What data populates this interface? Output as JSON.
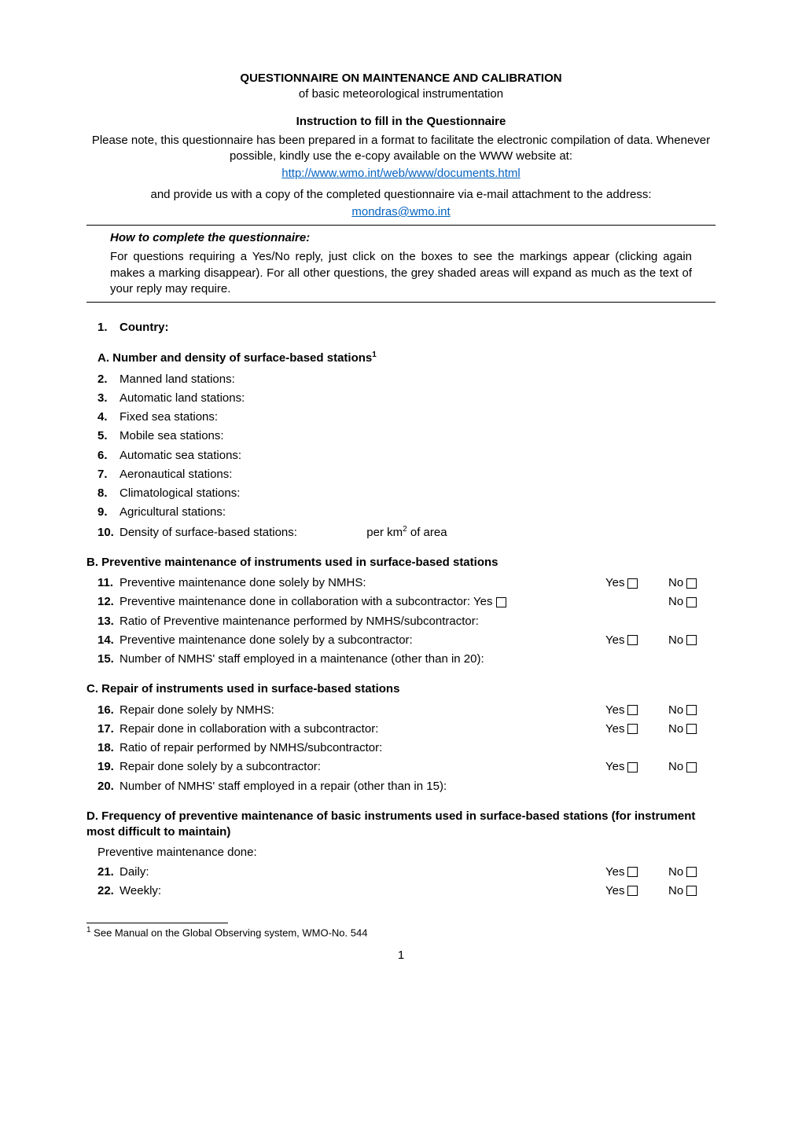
{
  "header": {
    "title": "QUESTIONNAIRE ON MAINTENANCE AND CALIBRATION",
    "subtitle": "of basic meteorological instrumentation",
    "instruction_heading": "Instruction to fill in the Questionnaire",
    "instruction_p1": "Please note, this questionnaire has been prepared in a format to facilitate the electronic compilation of data. Whenever possible, kindly use the e-copy available on the WWW website at:",
    "link1": "http://www.wmo.int/web/www/documents.html",
    "instruction_p2": "and provide us with a copy of the completed questionnaire via e-mail attachment to the address:",
    "link2": "mondras@wmo.int",
    "howto_heading": "How to complete the questionnaire:",
    "howto_body": "For questions requiring a Yes/No reply, just click on the boxes to see the markings appear (clicking again makes a marking disappear).  For all other questions, the grey shaded areas will expand as much as the text of your reply may require."
  },
  "q1": {
    "num": "1.",
    "label": "Country:"
  },
  "sectionA": {
    "heading": "A. Number and density of surface-based stations",
    "sup": "1",
    "items": [
      {
        "num": "2.",
        "label": "Manned land stations:"
      },
      {
        "num": "3.",
        "label": "Automatic land stations:"
      },
      {
        "num": "4.",
        "label": "Fixed sea stations:"
      },
      {
        "num": "5.",
        "label": "Mobile sea stations:"
      },
      {
        "num": "6.",
        "label": "Automatic sea stations:"
      },
      {
        "num": "7.",
        "label": "Aeronautical stations:"
      },
      {
        "num": "8.",
        "label": "Climatological stations:"
      },
      {
        "num": "9.",
        "label": "Agricultural stations:"
      }
    ],
    "q10": {
      "num": "10.",
      "label": "Density of surface-based stations:",
      "unit_pre": "per km",
      "unit_sup": "2",
      "unit_post": " of area"
    }
  },
  "sectionB": {
    "heading": "B. Preventive maintenance of instruments used in surface-based stations",
    "rows": [
      {
        "num": "11.",
        "label": "Preventive maintenance done solely by NMHS:",
        "yn": true
      },
      {
        "num": "12.",
        "label": "Preventive maintenance done in collaboration with a subcontractor:",
        "yn": true,
        "tight": true
      },
      {
        "num": "13.",
        "label": "Ratio of Preventive maintenance performed by NMHS/subcontractor:",
        "yn": false
      },
      {
        "num": "14.",
        "label": "Preventive maintenance done solely by a subcontractor:",
        "yn": true
      },
      {
        "num": "15.",
        "label": "Number of NMHS' staff employed in a maintenance (other than in 20):",
        "yn": false
      }
    ]
  },
  "sectionC": {
    "heading": "C. Repair of instruments used in surface-based stations",
    "rows": [
      {
        "num": "16.",
        "label": "Repair done solely by NMHS:",
        "yn": true
      },
      {
        "num": "17.",
        "label": "Repair done in collaboration with a subcontractor:",
        "yn": true
      },
      {
        "num": "18.",
        "label": "Ratio of repair performed by NMHS/subcontractor:",
        "yn": false
      },
      {
        "num": "19.",
        "label": "Repair done solely by a subcontractor:",
        "yn": true
      },
      {
        "num": "20.",
        "label": "Number of NMHS' staff employed in a repair (other than in 15):",
        "yn": false
      }
    ]
  },
  "sectionD": {
    "heading": "D. Frequency of preventive maintenance of basic instruments used in surface-based stations (for instrument most difficult to maintain)",
    "intro": "Preventive maintenance done:",
    "rows": [
      {
        "num": "21.",
        "label": "Daily:",
        "yn": true
      },
      {
        "num": "22.",
        "label": "Weekly:",
        "yn": true
      }
    ]
  },
  "yn": {
    "yes": "Yes",
    "no": "No"
  },
  "footnote": {
    "sup": "1",
    "text": " See Manual on the Global Observing system, WMO-No. 544"
  },
  "page": "1"
}
